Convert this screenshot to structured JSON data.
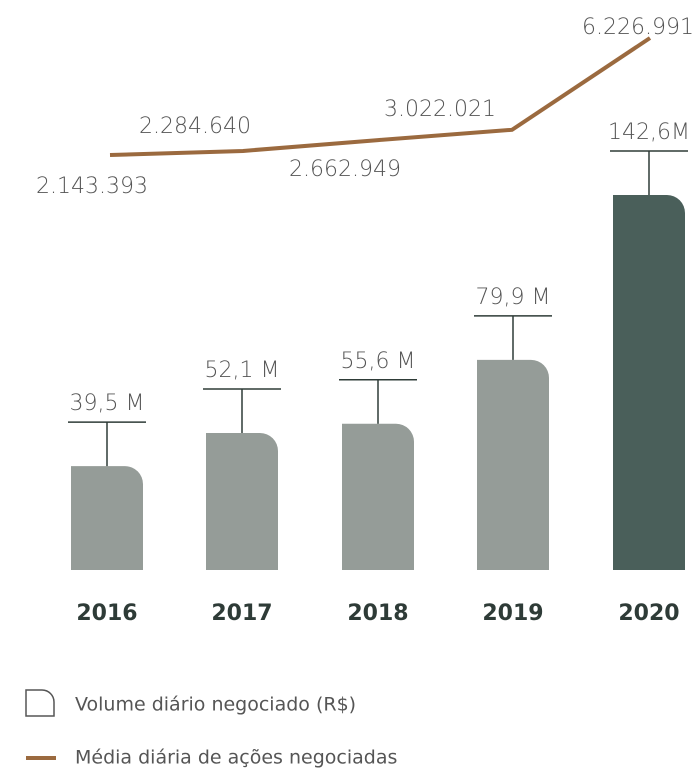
{
  "chart_data": {
    "type": "bar",
    "categories": [
      "2016",
      "2017",
      "2018",
      "2019",
      "2020"
    ],
    "series": [
      {
        "name": "Volume diário negociado (R$)",
        "type": "bar",
        "colors": [
          "#959c98",
          "#959c98",
          "#959c98",
          "#959c98",
          "#4a5f5a"
        ],
        "values": [
          39.5,
          52.1,
          55.6,
          79.9,
          142.6
        ],
        "value_labels": [
          "39,5 M",
          "52,1 M",
          "55,6 M",
          "79,9 M",
          "142,6M"
        ]
      },
      {
        "name": "Média diária de ações negociadas",
        "type": "line",
        "color": "#9b6a3f",
        "values": [
          2143393,
          2284640,
          2662949,
          3022021,
          6226991
        ],
        "value_labels": [
          "2.143.393",
          "2.284.640",
          "2.662.949",
          "3.022.021",
          "6.226.991"
        ]
      }
    ]
  }
}
